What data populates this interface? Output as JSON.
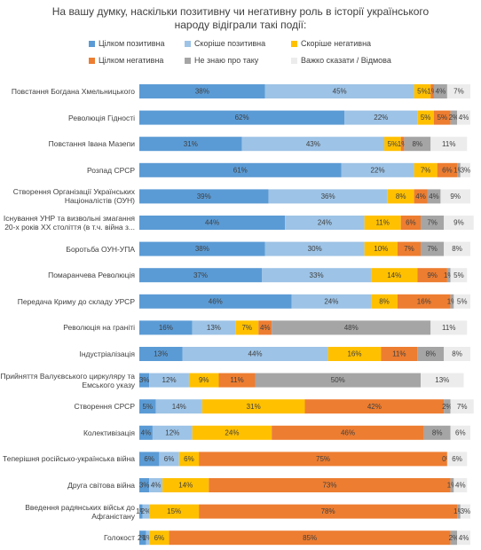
{
  "chart_data": {
    "type": "stacked-bar-horizontal",
    "title": "На вашу думку, наскільки позитивну чи негативну роль в історії українського народу відіграли такі події:",
    "categories": [
      "Повстання Богдана Хмельницького",
      "Революція Гідності",
      "Повстання Івана Мазепи",
      "Розпад СРСР",
      "Створення Організації Українських Націоналістів (ОУН)",
      "Існування УНР та визвольні змагання 20-х років ХХ століття (в т.ч. війна з...",
      "Боротьба ОУН-УПА",
      "Помаранчева Революція",
      "Передача Криму до складу УРСР",
      "Революція на граніті",
      "Індустріалізація",
      "Прийняття Валуєвського циркуляру та Емського указу",
      "Створення СРСР",
      "Колективізація",
      "Теперішня російсько-українська війна",
      "Друга світова війна",
      "Введення радянських військ до Афганістану",
      "Голокост"
    ],
    "series": [
      {
        "name": "Цілком позитивна",
        "color": "#5b9bd5",
        "values": [
          38,
          62,
          31,
          61,
          39,
          44,
          38,
          37,
          46,
          16,
          13,
          3,
          5,
          4,
          6,
          3,
          1,
          2
        ],
        "value_labels": [
          "38%",
          "62%",
          "31%",
          "61%",
          "39%",
          "44%",
          "38%",
          "37%",
          "46%",
          "16%",
          "13%",
          "3%",
          "5%",
          "4%",
          "6%",
          "3%",
          "1%",
          "2%"
        ]
      },
      {
        "name": "Скоріше позитивна",
        "color": "#9dc3e6",
        "values": [
          45,
          22,
          43,
          22,
          36,
          24,
          30,
          33,
          24,
          13,
          44,
          12,
          14,
          12,
          6,
          4,
          2,
          1
        ],
        "value_labels": [
          "45%",
          "22%",
          "43%",
          "22%",
          "36%",
          "24%",
          "30%",
          "33%",
          "24%",
          "13%",
          "44%",
          "12%",
          "14%",
          "12%",
          "6%",
          "4%",
          "2%",
          "1%"
        ]
      },
      {
        "name": "Скоріше негативна",
        "color": "#ffc000",
        "values": [
          5,
          5,
          5,
          7,
          8,
          11,
          10,
          14,
          8,
          7,
          16,
          9,
          31,
          24,
          6,
          14,
          15,
          6
        ],
        "value_labels": [
          "5%",
          "5%",
          "5%",
          "7%",
          "8%",
          "11%",
          "10%",
          "14%",
          "8%",
          "7%",
          "16%",
          "9%",
          "31%",
          "24%",
          "6%",
          "14%",
          "15%",
          "6%"
        ]
      },
      {
        "name": "Цілком негативна",
        "color": "#ed7d31",
        "values": [
          1,
          5,
          1,
          6,
          4,
          6,
          7,
          9,
          16,
          4,
          11,
          11,
          42,
          46,
          75,
          73,
          78,
          85
        ],
        "value_labels": [
          "1%",
          "5%",
          "1%",
          "6%",
          "4%",
          "6%",
          "7%",
          "9%",
          "16%",
          "4%",
          "11%",
          "11%",
          "42%",
          "46%",
          "75%",
          "73%",
          "78%",
          "85%"
        ]
      },
      {
        "name": "Не знаю про таку",
        "color": "#a5a5a5",
        "values": [
          4,
          2,
          8,
          1,
          4,
          7,
          7,
          1,
          1,
          48,
          8,
          50,
          2,
          8,
          0,
          1,
          1,
          2
        ],
        "value_labels": [
          "4%",
          "2%",
          "8%",
          "1%",
          "4%",
          "7%",
          "7%",
          "1%",
          "1%",
          "48%",
          "8%",
          "50%",
          "2%",
          "8%",
          "0%",
          "1%",
          "1%",
          "2%"
        ]
      },
      {
        "name": "Важко сказати / Відмова",
        "color": "#ececec",
        "values": [
          7,
          4,
          11,
          3,
          9,
          9,
          8,
          5,
          5,
          11,
          8,
          13,
          7,
          6,
          6,
          4,
          3,
          4
        ],
        "value_labels": [
          "7%",
          "4%",
          "11%",
          "3%",
          "9%",
          "9%",
          "8%",
          "5%",
          "5%",
          "11%",
          "8%",
          "13%",
          "7%",
          "6%",
          "6%",
          "4%",
          "3%",
          "4%"
        ]
      }
    ]
  }
}
